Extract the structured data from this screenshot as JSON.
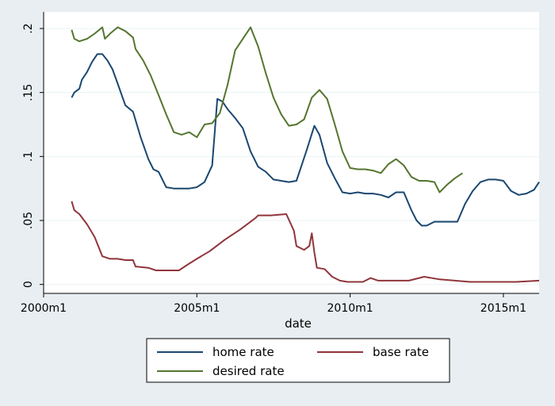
{
  "chart_data": {
    "type": "line",
    "xlabel": "date",
    "ylabel": "",
    "title": "",
    "xlim": [
      "2000-01",
      "2016-03"
    ],
    "ylim": [
      -0.007,
      0.213
    ],
    "x_ticks": [
      {
        "value": "2000-01",
        "label": "2000m1"
      },
      {
        "value": "2005-01",
        "label": "2005m1"
      },
      {
        "value": "2010-01",
        "label": "2010m1"
      },
      {
        "value": "2015-01",
        "label": "2015m1"
      }
    ],
    "y_ticks": [
      {
        "value": 0,
        "label": "0"
      },
      {
        "value": 0.05,
        "label": ".05"
      },
      {
        "value": 0.1,
        "label": ".1"
      },
      {
        "value": 0.15,
        "label": ".15"
      },
      {
        "value": 0.2,
        "label": ".2"
      }
    ],
    "grid": "horizontal",
    "legend_position": "bottom",
    "series": [
      {
        "name": "home rate",
        "color": "#1a476f",
        "points": [
          [
            "2000-12",
            0.146
          ],
          [
            "2001-01",
            0.15
          ],
          [
            "2001-03",
            0.153
          ],
          [
            "2001-04",
            0.16
          ],
          [
            "2001-06",
            0.166
          ],
          [
            "2001-08",
            0.174
          ],
          [
            "2001-10",
            0.18
          ],
          [
            "2001-12",
            0.18
          ],
          [
            "2002-02",
            0.175
          ],
          [
            "2002-04",
            0.168
          ],
          [
            "2002-06",
            0.157
          ],
          [
            "2002-09",
            0.14
          ],
          [
            "2002-12",
            0.135
          ],
          [
            "2003-03",
            0.115
          ],
          [
            "2003-06",
            0.098
          ],
          [
            "2003-08",
            0.09
          ],
          [
            "2003-10",
            0.088
          ],
          [
            "2004-01",
            0.076
          ],
          [
            "2004-04",
            0.075
          ],
          [
            "2004-07",
            0.075
          ],
          [
            "2004-10",
            0.075
          ],
          [
            "2005-01",
            0.076
          ],
          [
            "2005-04",
            0.08
          ],
          [
            "2005-07",
            0.093
          ],
          [
            "2005-09",
            0.145
          ],
          [
            "2005-11",
            0.143
          ],
          [
            "2006-01",
            0.137
          ],
          [
            "2006-04",
            0.13
          ],
          [
            "2006-07",
            0.122
          ],
          [
            "2006-10",
            0.104
          ],
          [
            "2007-01",
            0.092
          ],
          [
            "2007-04",
            0.088
          ],
          [
            "2007-07",
            0.082
          ],
          [
            "2007-10",
            0.081
          ],
          [
            "2008-01",
            0.08
          ],
          [
            "2008-04",
            0.081
          ],
          [
            "2008-06",
            0.093
          ],
          [
            "2008-08",
            0.105
          ],
          [
            "2008-11",
            0.124
          ],
          [
            "2009-01",
            0.117
          ],
          [
            "2009-04",
            0.095
          ],
          [
            "2009-07",
            0.083
          ],
          [
            "2009-10",
            0.072
          ],
          [
            "2010-01",
            0.071
          ],
          [
            "2010-04",
            0.072
          ],
          [
            "2010-07",
            0.071
          ],
          [
            "2010-10",
            0.071
          ],
          [
            "2011-01",
            0.07
          ],
          [
            "2011-04",
            0.068
          ],
          [
            "2011-07",
            0.072
          ],
          [
            "2011-10",
            0.072
          ],
          [
            "2012-01",
            0.058
          ],
          [
            "2012-03",
            0.05
          ],
          [
            "2012-05",
            0.046
          ],
          [
            "2012-07",
            0.046
          ],
          [
            "2012-10",
            0.049
          ],
          [
            "2013-01",
            0.049
          ],
          [
            "2013-04",
            0.049
          ],
          [
            "2013-07",
            0.049
          ],
          [
            "2013-10",
            0.063
          ],
          [
            "2014-01",
            0.073
          ],
          [
            "2014-04",
            0.08
          ],
          [
            "2014-07",
            0.082
          ],
          [
            "2014-10",
            0.082
          ],
          [
            "2015-01",
            0.081
          ],
          [
            "2015-04",
            0.073
          ],
          [
            "2015-07",
            0.07
          ],
          [
            "2015-10",
            0.071
          ],
          [
            "2016-01",
            0.074
          ],
          [
            "2016-03",
            0.08
          ]
        ]
      },
      {
        "name": "base rate",
        "color": "#90353b",
        "points": [
          [
            "2000-12",
            0.065
          ],
          [
            "2001-01",
            0.058
          ],
          [
            "2001-03",
            0.055
          ],
          [
            "2001-06",
            0.047
          ],
          [
            "2001-09",
            0.037
          ],
          [
            "2001-12",
            0.022
          ],
          [
            "2002-03",
            0.02
          ],
          [
            "2002-06",
            0.02
          ],
          [
            "2002-09",
            0.019
          ],
          [
            "2002-12",
            0.019
          ],
          [
            "2003-01",
            0.014
          ],
          [
            "2003-06",
            0.013
          ],
          [
            "2003-09",
            0.011
          ],
          [
            "2004-01",
            0.011
          ],
          [
            "2004-06",
            0.011
          ],
          [
            "2004-09",
            0.015
          ],
          [
            "2005-01",
            0.02
          ],
          [
            "2005-06",
            0.026
          ],
          [
            "2005-12",
            0.035
          ],
          [
            "2006-06",
            0.043
          ],
          [
            "2006-12",
            0.052
          ],
          [
            "2007-01",
            0.054
          ],
          [
            "2007-06",
            0.054
          ],
          [
            "2007-12",
            0.055
          ],
          [
            "2008-03",
            0.042
          ],
          [
            "2008-04",
            0.03
          ],
          [
            "2008-07",
            0.027
          ],
          [
            "2008-09",
            0.03
          ],
          [
            "2008-10",
            0.04
          ],
          [
            "2008-11",
            0.025
          ],
          [
            "2008-12",
            0.013
          ],
          [
            "2009-03",
            0.012
          ],
          [
            "2009-06",
            0.006
          ],
          [
            "2009-09",
            0.003
          ],
          [
            "2009-12",
            0.002
          ],
          [
            "2010-03",
            0.002
          ],
          [
            "2010-06",
            0.002
          ],
          [
            "2010-09",
            0.005
          ],
          [
            "2010-12",
            0.003
          ],
          [
            "2011-06",
            0.003
          ],
          [
            "2011-12",
            0.003
          ],
          [
            "2012-06",
            0.006
          ],
          [
            "2012-12",
            0.004
          ],
          [
            "2013-06",
            0.003
          ],
          [
            "2013-12",
            0.002
          ],
          [
            "2014-06",
            0.002
          ],
          [
            "2014-12",
            0.002
          ],
          [
            "2015-06",
            0.002
          ],
          [
            "2016-03",
            0.003
          ]
        ]
      },
      {
        "name": "desired rate",
        "color": "#55752f",
        "points": [
          [
            "2000-12",
            0.199
          ],
          [
            "2001-01",
            0.192
          ],
          [
            "2001-03",
            0.19
          ],
          [
            "2001-06",
            0.192
          ],
          [
            "2001-09",
            0.196
          ],
          [
            "2001-12",
            0.201
          ],
          [
            "2002-01",
            0.192
          ],
          [
            "2002-03",
            0.196
          ],
          [
            "2002-06",
            0.201
          ],
          [
            "2002-09",
            0.198
          ],
          [
            "2002-12",
            0.193
          ],
          [
            "2003-01",
            0.184
          ],
          [
            "2003-04",
            0.175
          ],
          [
            "2003-07",
            0.163
          ],
          [
            "2003-10",
            0.148
          ],
          [
            "2004-01",
            0.133
          ],
          [
            "2004-04",
            0.119
          ],
          [
            "2004-07",
            0.117
          ],
          [
            "2004-10",
            0.119
          ],
          [
            "2005-01",
            0.115
          ],
          [
            "2005-04",
            0.125
          ],
          [
            "2005-07",
            0.126
          ],
          [
            "2005-10",
            0.134
          ],
          [
            "2006-01",
            0.156
          ],
          [
            "2006-04",
            0.183
          ],
          [
            "2006-07",
            0.192
          ],
          [
            "2006-10",
            0.201
          ],
          [
            "2007-01",
            0.186
          ],
          [
            "2007-04",
            0.165
          ],
          [
            "2007-07",
            0.146
          ],
          [
            "2007-10",
            0.133
          ],
          [
            "2008-01",
            0.124
          ],
          [
            "2008-04",
            0.125
          ],
          [
            "2008-07",
            0.129
          ],
          [
            "2008-10",
            0.146
          ],
          [
            "2009-01",
            0.152
          ],
          [
            "2009-04",
            0.145
          ],
          [
            "2009-07",
            0.125
          ],
          [
            "2009-10",
            0.104
          ],
          [
            "2010-01",
            0.091
          ],
          [
            "2010-04",
            0.09
          ],
          [
            "2010-07",
            0.09
          ],
          [
            "2010-10",
            0.089
          ],
          [
            "2011-01",
            0.087
          ],
          [
            "2011-04",
            0.094
          ],
          [
            "2011-07",
            0.098
          ],
          [
            "2011-10",
            0.093
          ],
          [
            "2012-01",
            0.084
          ],
          [
            "2012-04",
            0.081
          ],
          [
            "2012-07",
            0.081
          ],
          [
            "2012-10",
            0.08
          ],
          [
            "2012-12",
            0.072
          ],
          [
            "2013-03",
            0.078
          ],
          [
            "2013-06",
            0.083
          ],
          [
            "2013-09",
            0.087
          ]
        ]
      }
    ]
  },
  "legend": {
    "items": [
      {
        "label": "home rate",
        "color": "#1a476f"
      },
      {
        "label": "base rate",
        "color": "#90353b"
      },
      {
        "label": "desired rate",
        "color": "#55752f"
      }
    ]
  }
}
